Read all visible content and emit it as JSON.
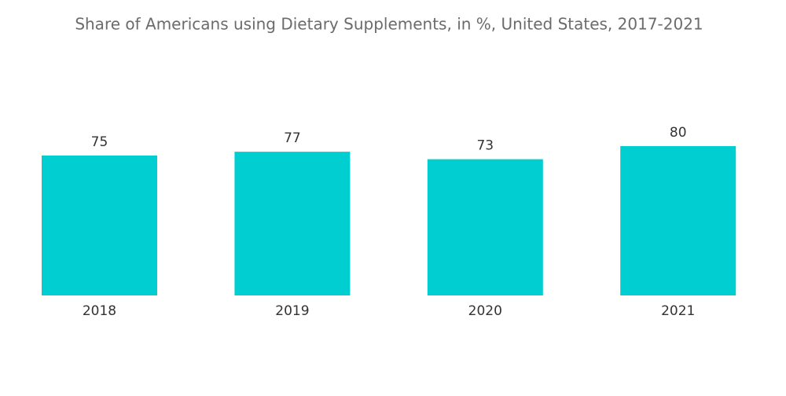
{
  "chart_data": {
    "type": "bar",
    "title": "Share of Americans using Dietary Supplements, in %, United States, 2017-2021",
    "categories": [
      "2018",
      "2019",
      "2020",
      "2021"
    ],
    "values": [
      75,
      77,
      73,
      80
    ],
    "color": "#00ced1"
  }
}
